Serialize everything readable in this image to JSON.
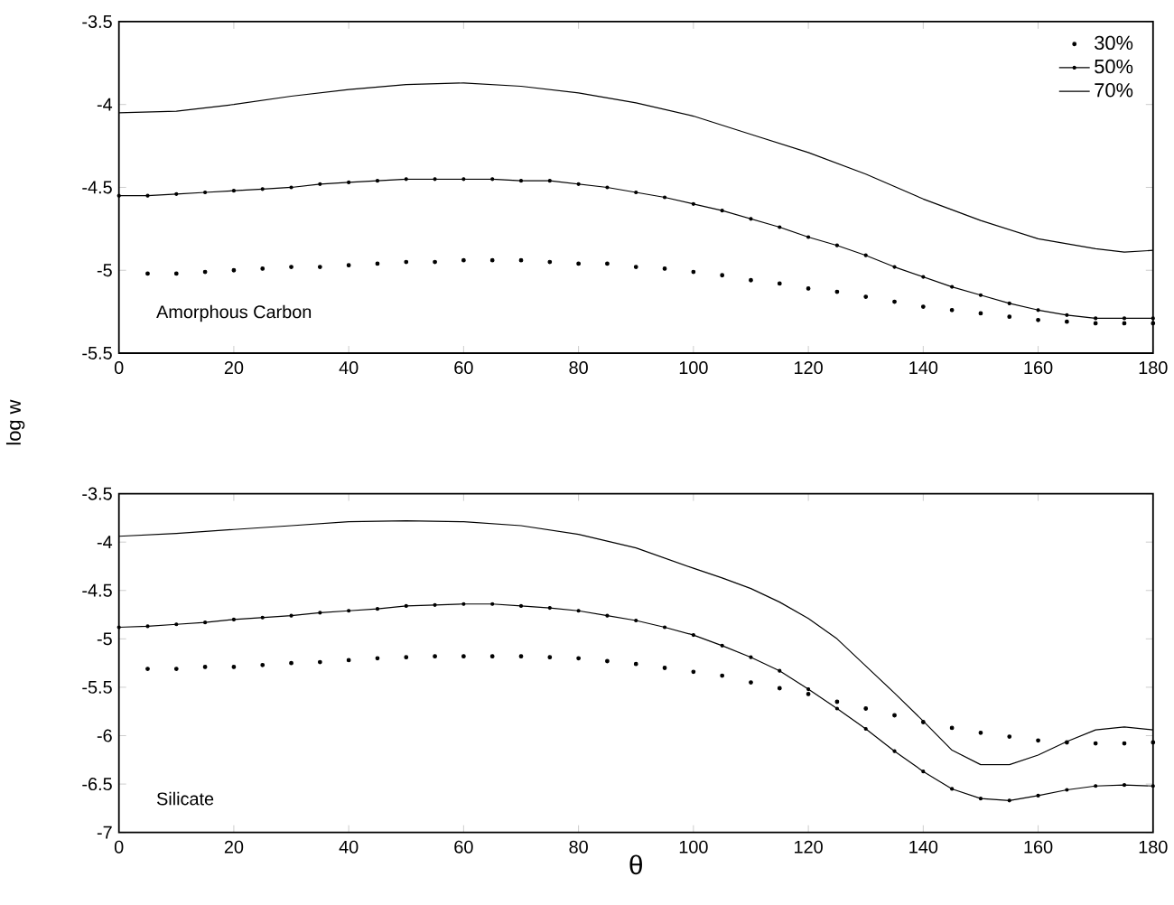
{
  "chart_data": [
    {
      "type": "line",
      "ylabel": "log w",
      "xlim": [
        0,
        180
      ],
      "xticks": [
        0,
        20,
        40,
        60,
        80,
        100,
        120,
        140,
        160,
        180
      ],
      "ylim": [
        -5.5,
        -3.5
      ],
      "yticks": [
        -5.5,
        -5,
        -4.5,
        -4,
        -3.5
      ],
      "legend": "top right",
      "annotations": [
        "Amorphous Carbon"
      ],
      "series": [
        {
          "name": "30%",
          "type": "scatter",
          "marker": "circle",
          "color": "#000000",
          "x": [
            5,
            10,
            15,
            20,
            25,
            30,
            35,
            40,
            45,
            50,
            55,
            60,
            65,
            70,
            75,
            80,
            85,
            90,
            95,
            100,
            105,
            110,
            115,
            120,
            125,
            130,
            135,
            140,
            145,
            150,
            155,
            160,
            165,
            170,
            175,
            180
          ],
          "values": [
            -5.02,
            -5.02,
            -5.01,
            -5.0,
            -4.99,
            -4.98,
            -4.98,
            -4.97,
            -4.96,
            -4.95,
            -4.95,
            -4.94,
            -4.94,
            -4.94,
            -4.95,
            -4.96,
            -4.96,
            -4.98,
            -4.99,
            -5.01,
            -5.03,
            -5.06,
            -5.08,
            -5.11,
            -5.13,
            -5.16,
            -5.19,
            -5.22,
            -5.24,
            -5.26,
            -5.28,
            -5.3,
            -5.31,
            -5.32,
            -5.32,
            -5.32
          ]
        },
        {
          "name": "50%",
          "marker": "circle",
          "color": "#000000",
          "x": [
            0,
            5,
            10,
            15,
            20,
            25,
            30,
            35,
            40,
            45,
            50,
            55,
            60,
            65,
            70,
            75,
            80,
            85,
            90,
            95,
            100,
            105,
            110,
            115,
            120,
            125,
            130,
            135,
            140,
            145,
            150,
            155,
            160,
            165,
            170,
            175,
            180
          ],
          "values": [
            -4.55,
            -4.55,
            -4.54,
            -4.53,
            -4.52,
            -4.51,
            -4.5,
            -4.48,
            -4.47,
            -4.46,
            -4.45,
            -4.45,
            -4.45,
            -4.45,
            -4.46,
            -4.46,
            -4.48,
            -4.5,
            -4.53,
            -4.56,
            -4.6,
            -4.64,
            -4.69,
            -4.74,
            -4.8,
            -4.85,
            -4.91,
            -4.98,
            -5.04,
            -5.1,
            -5.15,
            -5.2,
            -5.24,
            -5.27,
            -5.29,
            -5.29,
            -5.29
          ]
        },
        {
          "name": "70%",
          "marker": "none",
          "color": "#000000",
          "x": [
            0,
            10,
            20,
            30,
            40,
            50,
            60,
            70,
            80,
            90,
            100,
            110,
            120,
            130,
            140,
            150,
            160,
            170,
            175,
            180
          ],
          "values": [
            -4.05,
            -4.04,
            -4.0,
            -3.95,
            -3.91,
            -3.88,
            -3.87,
            -3.89,
            -3.93,
            -3.99,
            -4.07,
            -4.18,
            -4.29,
            -4.42,
            -4.57,
            -4.7,
            -4.81,
            -4.87,
            -4.89,
            -4.88
          ]
        }
      ]
    },
    {
      "type": "line",
      "xlabel": "θ",
      "xlim": [
        0,
        180
      ],
      "xticks": [
        0,
        20,
        40,
        60,
        80,
        100,
        120,
        140,
        160,
        180
      ],
      "ylim": [
        -7,
        -3.5
      ],
      "yticks": [
        -7,
        -6.5,
        -6,
        -5.5,
        -5,
        -4.5,
        -4,
        -3.5
      ],
      "annotations": [
        "Silicate"
      ],
      "series": [
        {
          "type": "scatter",
          "marker": "circle",
          "color": "#000000",
          "x": [
            5,
            10,
            15,
            20,
            25,
            30,
            35,
            40,
            45,
            50,
            55,
            60,
            65,
            70,
            75,
            80,
            85,
            90,
            95,
            100,
            105,
            110,
            115,
            120,
            125,
            130,
            135,
            140,
            145,
            150,
            155,
            160,
            165,
            170,
            175,
            180
          ],
          "values": [
            -5.31,
            -5.31,
            -5.29,
            -5.29,
            -5.27,
            -5.25,
            -5.24,
            -5.22,
            -5.2,
            -5.19,
            -5.18,
            -5.18,
            -5.18,
            -5.18,
            -5.19,
            -5.2,
            -5.23,
            -5.26,
            -5.3,
            -5.34,
            -5.38,
            -5.45,
            -5.51,
            -5.57,
            -5.65,
            -5.72,
            -5.79,
            -5.86,
            -5.92,
            -5.97,
            -6.01,
            -6.05,
            -6.07,
            -6.08,
            -6.08,
            -6.07
          ]
        },
        {
          "marker": "circle",
          "color": "#000000",
          "x": [
            0,
            5,
            10,
            15,
            20,
            25,
            30,
            35,
            40,
            45,
            50,
            55,
            60,
            65,
            70,
            75,
            80,
            85,
            90,
            95,
            100,
            105,
            110,
            115,
            120,
            125,
            130,
            135,
            140,
            145,
            150,
            155,
            160,
            165,
            170,
            175,
            180
          ],
          "values": [
            -4.88,
            -4.87,
            -4.85,
            -4.83,
            -4.8,
            -4.78,
            -4.76,
            -4.73,
            -4.71,
            -4.69,
            -4.66,
            -4.65,
            -4.64,
            -4.64,
            -4.66,
            -4.68,
            -4.71,
            -4.76,
            -4.81,
            -4.88,
            -4.96,
            -5.07,
            -5.19,
            -5.33,
            -5.52,
            -5.72,
            -5.93,
            -6.16,
            -6.37,
            -6.55,
            -6.65,
            -6.67,
            -6.62,
            -6.56,
            -6.52,
            -6.51,
            -6.52
          ]
        },
        {
          "marker": "none",
          "color": "#000000",
          "x": [
            0,
            10,
            20,
            30,
            40,
            50,
            60,
            70,
            80,
            90,
            100,
            105,
            110,
            115,
            120,
            125,
            130,
            135,
            140,
            145,
            150,
            155,
            160,
            165,
            170,
            175,
            180
          ],
          "values": [
            -3.94,
            -3.91,
            -3.87,
            -3.83,
            -3.79,
            -3.78,
            -3.79,
            -3.83,
            -3.92,
            -4.06,
            -4.27,
            -4.37,
            -4.48,
            -4.62,
            -4.79,
            -5.0,
            -5.28,
            -5.56,
            -5.85,
            -6.15,
            -6.3,
            -6.3,
            -6.2,
            -6.06,
            -5.94,
            -5.91,
            -5.94
          ]
        }
      ]
    }
  ]
}
